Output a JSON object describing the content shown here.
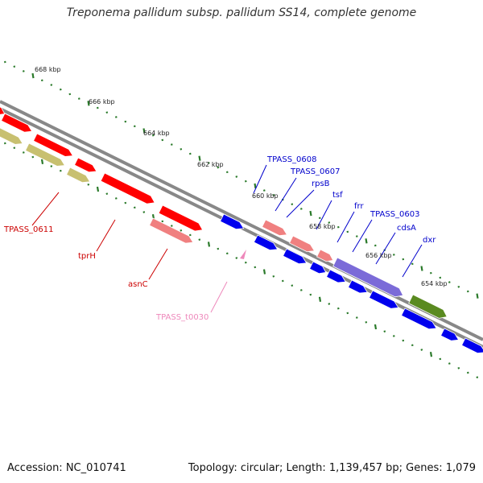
{
  "title": "Treponema pallidum subsp. pallidum SS14, complete genome",
  "footer": {
    "accession": "Accession: NC_010741",
    "summary": "Topology: circular; Length: 1,139,457 bp; Genes: 1,079"
  },
  "colors": {
    "backbone": "#888888",
    "tick": "#2a7a2a",
    "cds": "#ff0000",
    "cds_alt": "#0000ee",
    "pseudo": "#c8c070",
    "rna": "#f08080",
    "highlight_purple": "#7b6bd8",
    "highlight_green": "#5a8a20",
    "label_red": "#cc0000",
    "label_blue": "#0000cc",
    "label_pink": "#ee88bb"
  },
  "scale_labels": [
    {
      "text": "668 kbp"
    },
    {
      "text": "666 kbp"
    },
    {
      "text": "664 kbp"
    },
    {
      "text": "662 kbp"
    },
    {
      "text": "660 kbp"
    },
    {
      "text": "658 kbp"
    },
    {
      "text": "656 kbp"
    },
    {
      "text": "654 kbp"
    }
  ],
  "gene_labels": [
    {
      "name": "TPASS_0611",
      "color": "red"
    },
    {
      "name": "tprH",
      "color": "red"
    },
    {
      "name": "asnC",
      "color": "red"
    },
    {
      "name": "TPASS_t0030",
      "color": "pink"
    },
    {
      "name": "TPASS_0608",
      "color": "blue"
    },
    {
      "name": "TPASS_0607",
      "color": "blue"
    },
    {
      "name": "rpsB",
      "color": "blue"
    },
    {
      "name": "tsf",
      "color": "blue"
    },
    {
      "name": "frr",
      "color": "blue"
    },
    {
      "name": "TPASS_0603",
      "color": "blue"
    },
    {
      "name": "cdsA",
      "color": "blue"
    },
    {
      "name": "dxr",
      "color": "blue"
    }
  ]
}
